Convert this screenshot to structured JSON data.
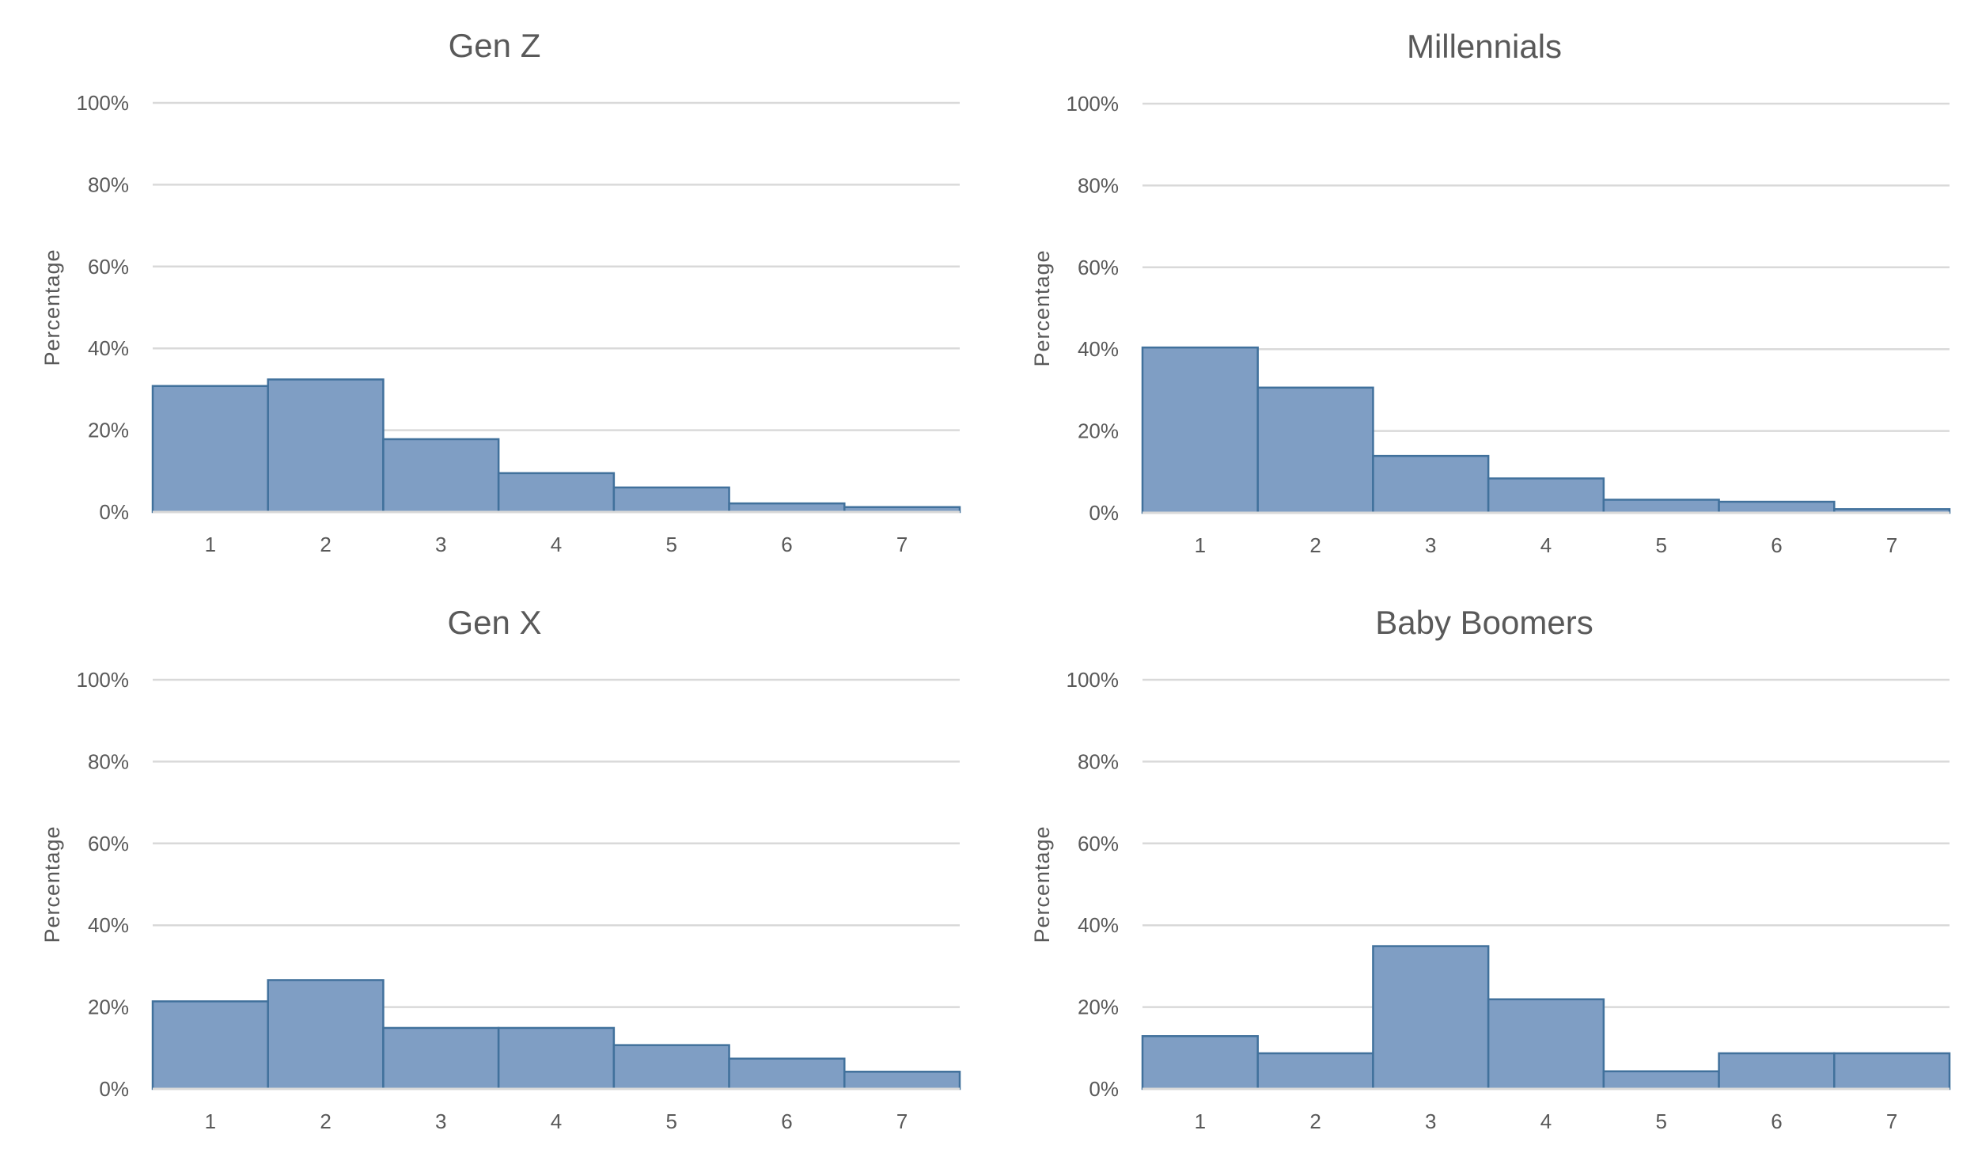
{
  "chart_data": [
    {
      "type": "bar",
      "title": "Gen Z",
      "xlabel": "",
      "ylabel": "Percentage",
      "categories": [
        "1",
        "2",
        "3",
        "4",
        "5",
        "6",
        "7"
      ],
      "values": [
        30.8,
        32.4,
        17.8,
        9.5,
        6.0,
        2.1,
        1.2
      ],
      "ylim": [
        0,
        100
      ],
      "yticks": [
        "0%",
        "20%",
        "40%",
        "60%",
        "80%",
        "100%"
      ],
      "ytick_values": [
        0,
        20,
        40,
        60,
        80,
        100
      ],
      "grid": true,
      "legend": "none",
      "position": "top-left"
    },
    {
      "type": "bar",
      "title": "Millennials",
      "xlabel": "",
      "ylabel": "Percentage",
      "categories": [
        "1",
        "2",
        "3",
        "4",
        "5",
        "6",
        "7"
      ],
      "values": [
        40.4,
        30.6,
        13.9,
        8.4,
        3.2,
        2.7,
        0.9
      ],
      "ylim": [
        0,
        100
      ],
      "yticks": [
        "0%",
        "20%",
        "40%",
        "60%",
        "80%",
        "100%"
      ],
      "ytick_values": [
        0,
        20,
        40,
        60,
        80,
        100
      ],
      "grid": true,
      "legend": "none",
      "position": "top-right"
    },
    {
      "type": "bar",
      "title": "Gen X",
      "xlabel": "",
      "ylabel": "Percentage",
      "categories": [
        "1",
        "2",
        "3",
        "4",
        "5",
        "6",
        "7"
      ],
      "values": [
        21.4,
        26.6,
        14.9,
        14.9,
        10.7,
        7.4,
        4.2
      ],
      "ylim": [
        0,
        100
      ],
      "yticks": [
        "0%",
        "20%",
        "40%",
        "60%",
        "80%",
        "100%"
      ],
      "ytick_values": [
        0,
        20,
        40,
        60,
        80,
        100
      ],
      "grid": true,
      "legend": "none",
      "position": "bottom-left"
    },
    {
      "type": "bar",
      "title": "Baby Boomers",
      "xlabel": "",
      "ylabel": "Percentage",
      "categories": [
        "1",
        "2",
        "3",
        "4",
        "5",
        "6",
        "7"
      ],
      "values": [
        12.9,
        8.7,
        34.9,
        21.9,
        4.3,
        8.7,
        8.7
      ],
      "ylim": [
        0,
        100
      ],
      "yticks": [
        "0%",
        "20%",
        "40%",
        "60%",
        "80%",
        "100%"
      ],
      "ytick_values": [
        0,
        20,
        40,
        60,
        80,
        100
      ],
      "grid": true,
      "legend": "none",
      "position": "bottom-right"
    }
  ],
  "colors": {
    "bar_fill": "#7f9ec4",
    "bar_border": "#41719c",
    "gridline": "#d9d9d9",
    "text": "#595959"
  }
}
